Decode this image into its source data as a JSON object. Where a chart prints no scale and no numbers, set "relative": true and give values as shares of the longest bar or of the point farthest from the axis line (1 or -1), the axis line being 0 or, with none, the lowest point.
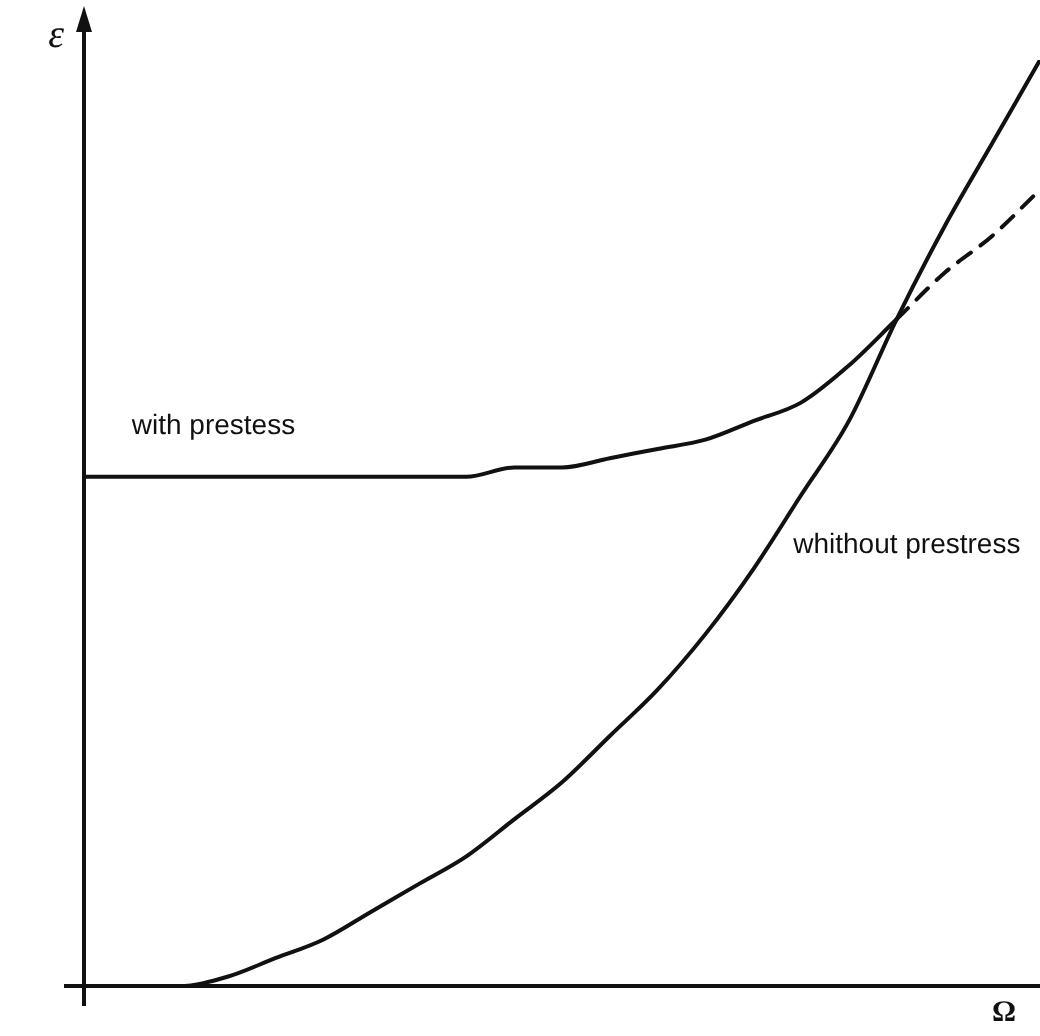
{
  "chart_data": {
    "type": "line",
    "relative": true,
    "xlabel": "Ω",
    "ylabel": "ε",
    "tick_labels": false,
    "legend": false,
    "marker": "none",
    "categories": [
      null,
      null,
      null,
      null,
      null,
      null,
      null,
      null,
      null,
      null,
      null,
      null,
      null,
      null,
      null,
      null,
      null,
      null,
      null,
      null,
      null
    ],
    "series": [
      {
        "name": "with prestess",
        "color": "#111111",
        "line_style": "solid",
        "values": [
          0.55,
          0.55,
          0.55,
          0.55,
          0.55,
          0.55,
          0.55,
          0.55,
          0.55,
          0.56,
          0.56,
          0.57,
          0.58,
          0.59,
          0.61,
          0.63,
          0.67,
          0.72,
          null,
          null,
          null
        ]
      },
      {
        "color": "#111111",
        "line_style": "dashed",
        "values": [
          null,
          null,
          null,
          null,
          null,
          null,
          null,
          null,
          null,
          null,
          null,
          null,
          null,
          null,
          null,
          null,
          null,
          0.72,
          0.77,
          0.81,
          0.86
        ]
      },
      {
        "name": "whithout prestress",
        "color": "#111111",
        "line_style": "solid",
        "values": [
          0,
          0,
          0,
          0.01,
          0.03,
          0.05,
          0.08,
          0.11,
          0.14,
          0.18,
          0.22,
          0.27,
          0.32,
          0.38,
          0.45,
          0.53,
          0.61,
          0.72,
          0.82,
          0.91,
          1
        ]
      }
    ]
  }
}
